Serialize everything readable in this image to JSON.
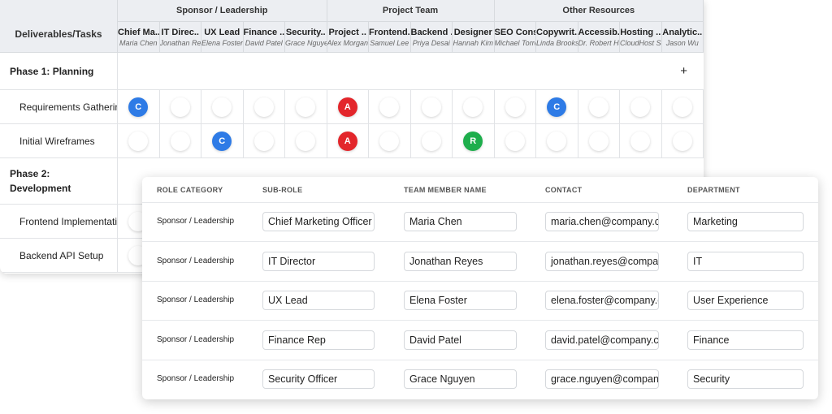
{
  "matrix": {
    "corner": "Deliverables/Tasks",
    "groups": [
      {
        "label": "Sponsor / Leadership",
        "columns": [
          {
            "title": "Chief Ma..",
            "name": "Maria Chen"
          },
          {
            "title": "IT Direc..",
            "name": "Jonathan Reyes"
          },
          {
            "title": "UX Lead",
            "name": "Elena Foster"
          },
          {
            "title": "Finance ..",
            "name": "David Patel"
          },
          {
            "title": "Security..",
            "name": "Grace Nguyen"
          }
        ]
      },
      {
        "label": "Project Team",
        "columns": [
          {
            "title": "Project ..",
            "name": "Alex Morgan"
          },
          {
            "title": "Frontend..",
            "name": "Samuel Lee"
          },
          {
            "title": "Backend ..",
            "name": "Priya Desai"
          },
          {
            "title": "Designer",
            "name": "Hannah Kim"
          }
        ]
      },
      {
        "label": "Other Resources",
        "columns": [
          {
            "title": "SEO Cons..",
            "name": "Michael Torres"
          },
          {
            "title": "Copywrit..",
            "name": "Linda Brooks"
          },
          {
            "title": "Accessib..",
            "name": "Dr. Robert Hall"
          },
          {
            "title": "Hosting ..",
            "name": "CloudHost Services"
          },
          {
            "title": "Analytic..",
            "name": "Jason Wu"
          }
        ]
      }
    ],
    "rows": [
      {
        "kind": "phase",
        "label": "Phase 1: Planning",
        "action": "+"
      },
      {
        "kind": "task",
        "label": "Requirements Gathering",
        "cells": [
          "C",
          null,
          null,
          null,
          null,
          "A",
          null,
          null,
          null,
          null,
          "C",
          null,
          null,
          null
        ]
      },
      {
        "kind": "task",
        "label": "Initial Wireframes",
        "cells": [
          null,
          null,
          "C",
          null,
          null,
          "A",
          null,
          null,
          "R",
          null,
          null,
          null,
          null,
          null
        ]
      },
      {
        "kind": "phase",
        "label": "Phase 2: Development"
      },
      {
        "kind": "task",
        "label": "Frontend Implementation",
        "cells": [
          null,
          null,
          null,
          null,
          null,
          null,
          null,
          null,
          null,
          null,
          null,
          null,
          null,
          null
        ]
      },
      {
        "kind": "task",
        "label": "Backend API Setup",
        "cells": [
          null,
          null,
          null,
          null,
          null,
          null,
          null,
          null,
          null,
          null,
          null,
          null,
          null,
          null
        ]
      }
    ]
  },
  "roster": {
    "headers": [
      "ROLE CATEGORY",
      "SUB-ROLE",
      "TEAM MEMBER NAME",
      "CONTACT",
      "DEPARTMENT"
    ],
    "rows": [
      [
        "Sponsor / Leadership",
        "Chief Marketing Officer",
        "Maria Chen",
        "maria.chen@company.com",
        "Marketing"
      ],
      [
        "Sponsor / Leadership",
        "IT Director",
        "Jonathan Reyes",
        "jonathan.reyes@company.com",
        "IT"
      ],
      [
        "Sponsor / Leadership",
        "UX Lead",
        "Elena Foster",
        "elena.foster@company.com",
        "User Experience"
      ],
      [
        "Sponsor / Leadership",
        "Finance Rep",
        "David Patel",
        "david.patel@company.com",
        "Finance"
      ],
      [
        "Sponsor / Leadership",
        "Security Officer",
        "Grace Nguyen",
        "grace.nguyen@company.com",
        "Security"
      ]
    ]
  }
}
